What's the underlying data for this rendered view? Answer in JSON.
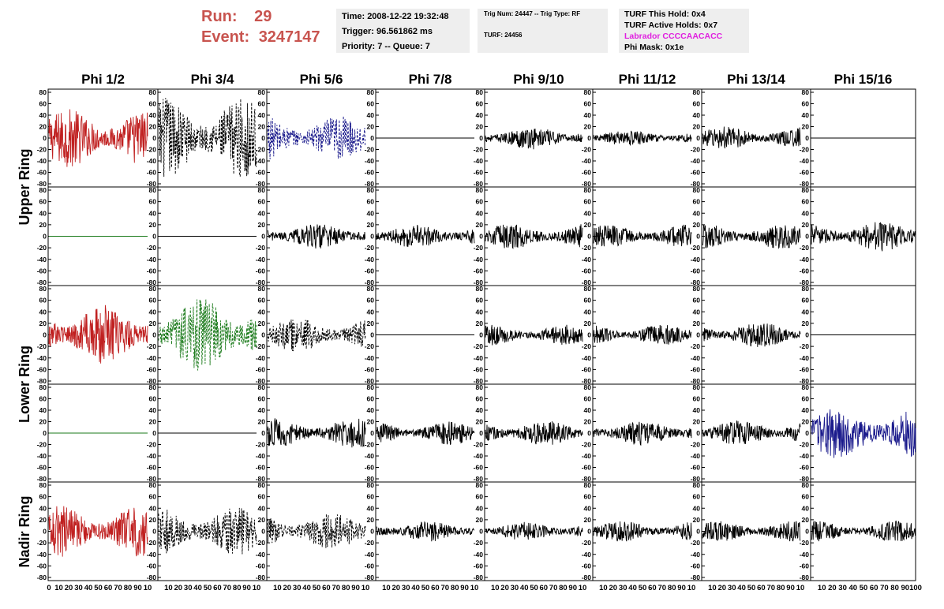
{
  "header": {
    "run_label": "Run:",
    "run_value": "29",
    "event_label": "Event:",
    "event_value": "3247147",
    "time": "Time: 2008-12-22 19:32:48",
    "trigger": "Trigger: 96.561862 ms",
    "priority": "Priority: 7 -- Queue: 7",
    "trig_num": "Trig Num: 24447 -- Trig Type: RF",
    "turf": "TURF: 24456",
    "turf_this_hold": "TURF This Hold: 0x4",
    "turf_active_holds": "TURF Active Holds: 0x7",
    "labrador": "Labrador CCCCAACACC",
    "phi_mask": "Phi Mask: 0x1e",
    "colors": {
      "run_text": "#c8544f",
      "info_bg": "#eeeeee",
      "labrador_text": "#e020e0"
    }
  },
  "chart_data": {
    "type": "line",
    "columns": [
      "Phi 1/2",
      "Phi 3/4",
      "Phi 5/6",
      "Phi 7/8",
      "Phi 9/10",
      "Phi 11/12",
      "Phi 13/14",
      "Phi 15/16"
    ],
    "rings": [
      "Upper Ring",
      "Lower Ring",
      "Nadir Ring"
    ],
    "xlim": [
      0,
      100
    ],
    "ylim": [
      -80,
      80
    ],
    "y_ticks": [
      80,
      60,
      40,
      20,
      0,
      -20,
      -40,
      -60,
      -80
    ],
    "x_ticks": [
      0,
      10,
      20,
      30,
      40,
      50,
      60,
      70,
      80,
      90,
      100
    ],
    "x_tick_labels_first": [
      "0",
      "10",
      "20",
      "30",
      "40",
      "50",
      "60",
      "70",
      "80",
      "90",
      "10"
    ],
    "x_tick_labels_middle": [
      "10",
      "20",
      "30",
      "40",
      "50",
      "60",
      "70",
      "80",
      "90",
      "10"
    ],
    "x_tick_labels_last": [
      "10",
      "20",
      "30",
      "40",
      "50",
      "60",
      "70",
      "80",
      "90",
      "100"
    ],
    "colors": {
      "red": "#c02020",
      "blue": "#1a1a8c",
      "green": "#1a7a1a",
      "black": "#000000"
    },
    "panels": [
      {
        "row": 0,
        "col": 0,
        "color": "red",
        "style": "solid",
        "amp": 52
      },
      {
        "row": 0,
        "col": 1,
        "color": "black",
        "style": "dashed",
        "amp": 72
      },
      {
        "row": 0,
        "col": 2,
        "color": "blue",
        "style": "dashed",
        "amp": 40
      },
      {
        "row": 0,
        "col": 3,
        "color": "black",
        "style": "solid",
        "amp": 0
      },
      {
        "row": 0,
        "col": 4,
        "color": "black",
        "style": "solid",
        "amp": 20
      },
      {
        "row": 0,
        "col": 5,
        "color": "black",
        "style": "solid",
        "amp": 14
      },
      {
        "row": 0,
        "col": 6,
        "color": "black",
        "style": "solid",
        "amp": 20
      },
      {
        "row": 0,
        "col": 7,
        "color": "black",
        "style": "solid",
        "amp": 0
      },
      {
        "row": 1,
        "col": 0,
        "color": "green",
        "style": "solid",
        "amp": 0
      },
      {
        "row": 1,
        "col": 1,
        "color": "black",
        "style": "solid",
        "amp": 0
      },
      {
        "row": 1,
        "col": 2,
        "color": "black",
        "style": "solid",
        "amp": 22
      },
      {
        "row": 1,
        "col": 3,
        "color": "black",
        "style": "solid",
        "amp": 20
      },
      {
        "row": 1,
        "col": 4,
        "color": "black",
        "style": "solid",
        "amp": 22
      },
      {
        "row": 1,
        "col": 5,
        "color": "black",
        "style": "solid",
        "amp": 20
      },
      {
        "row": 1,
        "col": 6,
        "color": "black",
        "style": "solid",
        "amp": 22
      },
      {
        "row": 1,
        "col": 7,
        "color": "black",
        "style": "solid",
        "amp": 26
      },
      {
        "row": 2,
        "col": 0,
        "color": "red",
        "style": "solid",
        "amp": 52
      },
      {
        "row": 2,
        "col": 1,
        "color": "green",
        "style": "dashed",
        "amp": 65
      },
      {
        "row": 2,
        "col": 2,
        "color": "black",
        "style": "dashed",
        "amp": 30
      },
      {
        "row": 2,
        "col": 3,
        "color": "black",
        "style": "solid",
        "amp": 0
      },
      {
        "row": 2,
        "col": 4,
        "color": "black",
        "style": "solid",
        "amp": 18
      },
      {
        "row": 2,
        "col": 5,
        "color": "black",
        "style": "solid",
        "amp": 18
      },
      {
        "row": 2,
        "col": 6,
        "color": "black",
        "style": "solid",
        "amp": 22
      },
      {
        "row": 2,
        "col": 7,
        "color": "black",
        "style": "solid",
        "amp": 0
      },
      {
        "row": 3,
        "col": 0,
        "color": "green",
        "style": "solid",
        "amp": 0
      },
      {
        "row": 3,
        "col": 1,
        "color": "black",
        "style": "solid",
        "amp": 0
      },
      {
        "row": 3,
        "col": 2,
        "color": "black",
        "style": "solid",
        "amp": 26
      },
      {
        "row": 3,
        "col": 3,
        "color": "black",
        "style": "solid",
        "amp": 20
      },
      {
        "row": 3,
        "col": 4,
        "color": "black",
        "style": "solid",
        "amp": 22
      },
      {
        "row": 3,
        "col": 5,
        "color": "black",
        "style": "solid",
        "amp": 22
      },
      {
        "row": 3,
        "col": 6,
        "color": "black",
        "style": "solid",
        "amp": 22
      },
      {
        "row": 3,
        "col": 7,
        "color": "blue",
        "style": "solid",
        "amp": 45
      },
      {
        "row": 4,
        "col": 0,
        "color": "red",
        "style": "solid",
        "amp": 45
      },
      {
        "row": 4,
        "col": 1,
        "color": "black",
        "style": "dashed",
        "amp": 42
      },
      {
        "row": 4,
        "col": 2,
        "color": "black",
        "style": "dashed",
        "amp": 32
      },
      {
        "row": 4,
        "col": 3,
        "color": "black",
        "style": "solid",
        "amp": 18
      },
      {
        "row": 4,
        "col": 4,
        "color": "black",
        "style": "solid",
        "amp": 16
      },
      {
        "row": 4,
        "col": 5,
        "color": "black",
        "style": "solid",
        "amp": 18
      },
      {
        "row": 4,
        "col": 6,
        "color": "black",
        "style": "solid",
        "amp": 18
      },
      {
        "row": 4,
        "col": 7,
        "color": "black",
        "style": "solid",
        "amp": 18
      }
    ]
  }
}
